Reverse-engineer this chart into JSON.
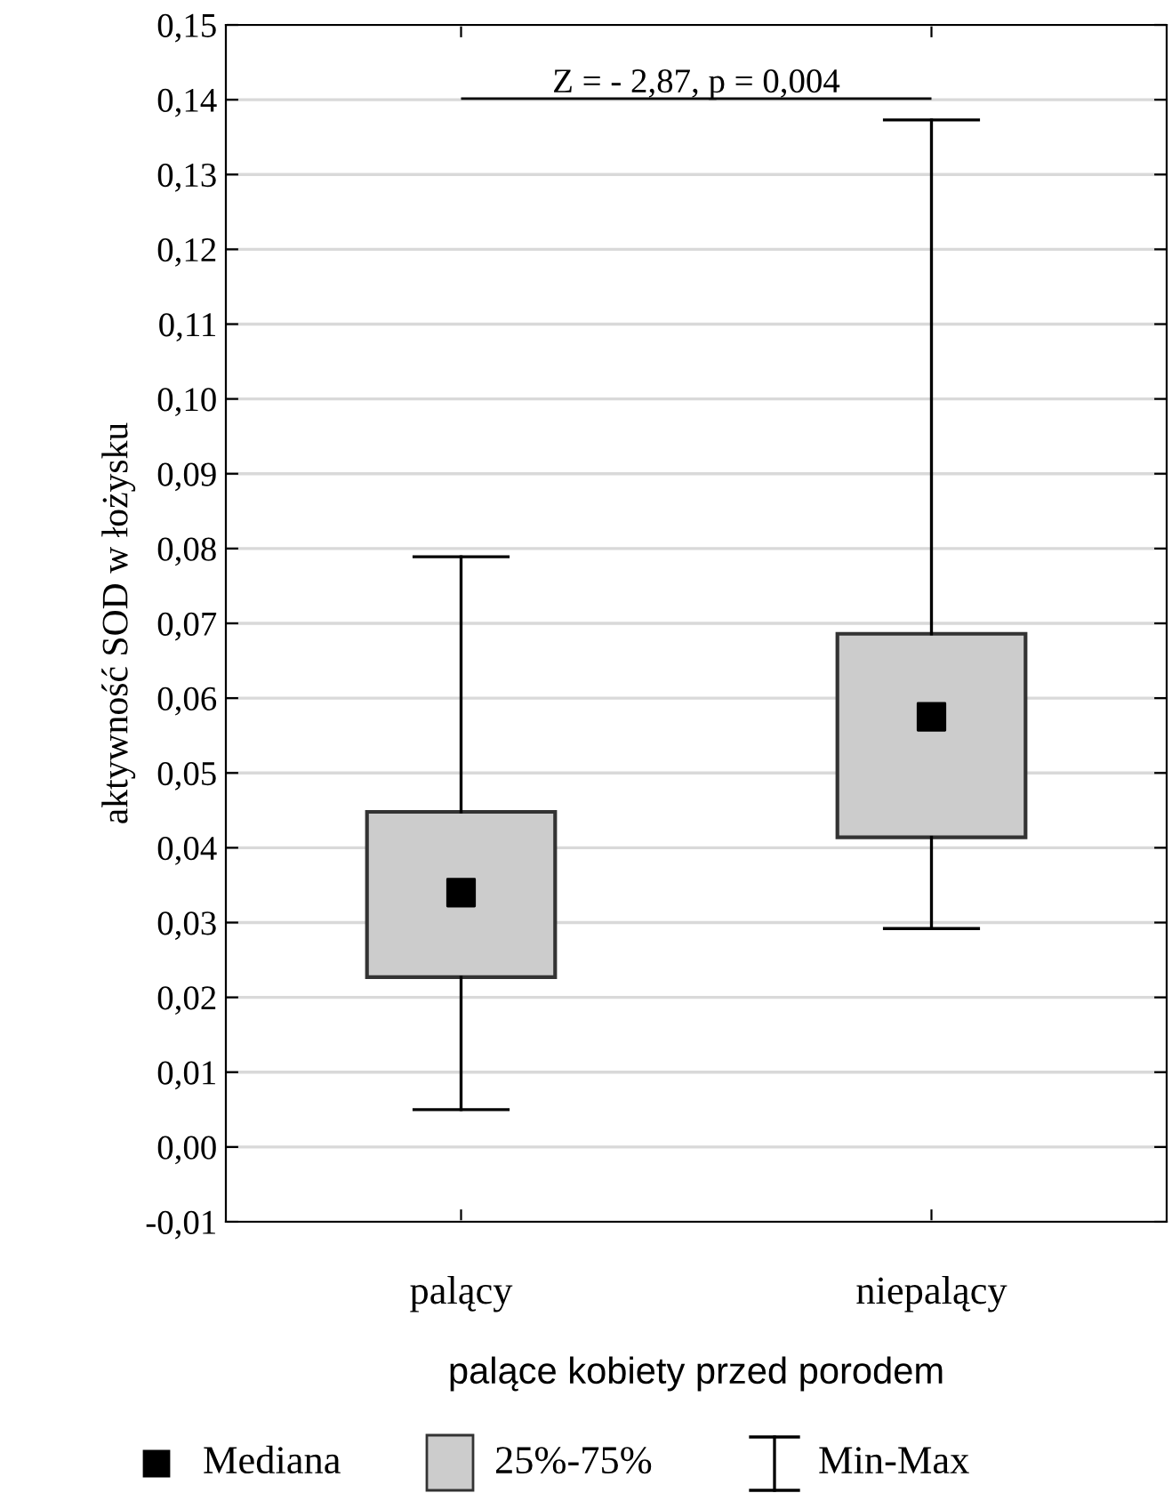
{
  "chart_data": {
    "type": "box",
    "ylabel": "aktywność SOD w łożysku",
    "xlabel": "palące kobiety przed porodem",
    "categories": [
      "palący",
      "niepalący"
    ],
    "series": [
      {
        "color": "#cccccc",
        "boxes": [
          {
            "low": 0.005,
            "q1": 0.0227,
            "median": 0.034,
            "q3": 0.0448,
            "high": 0.0789
          },
          {
            "low": 0.0292,
            "q1": 0.0414,
            "median": 0.0575,
            "q3": 0.0686,
            "high": 0.1373
          }
        ]
      }
    ],
    "ylim": [
      -0.01,
      0.15
    ],
    "yticks": [
      {
        "value": -0.01,
        "label": "-0,01"
      },
      {
        "value": 0.0,
        "label": "0,00"
      },
      {
        "value": 0.01,
        "label": "0,01"
      },
      {
        "value": 0.02,
        "label": "0,02"
      },
      {
        "value": 0.03,
        "label": "0,03"
      },
      {
        "value": 0.04,
        "label": "0,04"
      },
      {
        "value": 0.05,
        "label": "0,05"
      },
      {
        "value": 0.06,
        "label": "0,06"
      },
      {
        "value": 0.07,
        "label": "0,07"
      },
      {
        "value": 0.08,
        "label": "0,08"
      },
      {
        "value": 0.09,
        "label": "0,09"
      },
      {
        "value": 0.1,
        "label": "0,10"
      },
      {
        "value": 0.11,
        "label": "0,11"
      },
      {
        "value": 0.12,
        "label": "0,12"
      },
      {
        "value": 0.13,
        "label": "0,13"
      },
      {
        "value": 0.14,
        "label": "0,14"
      },
      {
        "value": 0.15,
        "label": "0,15"
      }
    ],
    "grid": "y",
    "marker": "square",
    "annotations": [
      "Z = - 2,87, p = 0,004",
      "Mediana",
      "25%-75%",
      "Min-Max"
    ]
  }
}
